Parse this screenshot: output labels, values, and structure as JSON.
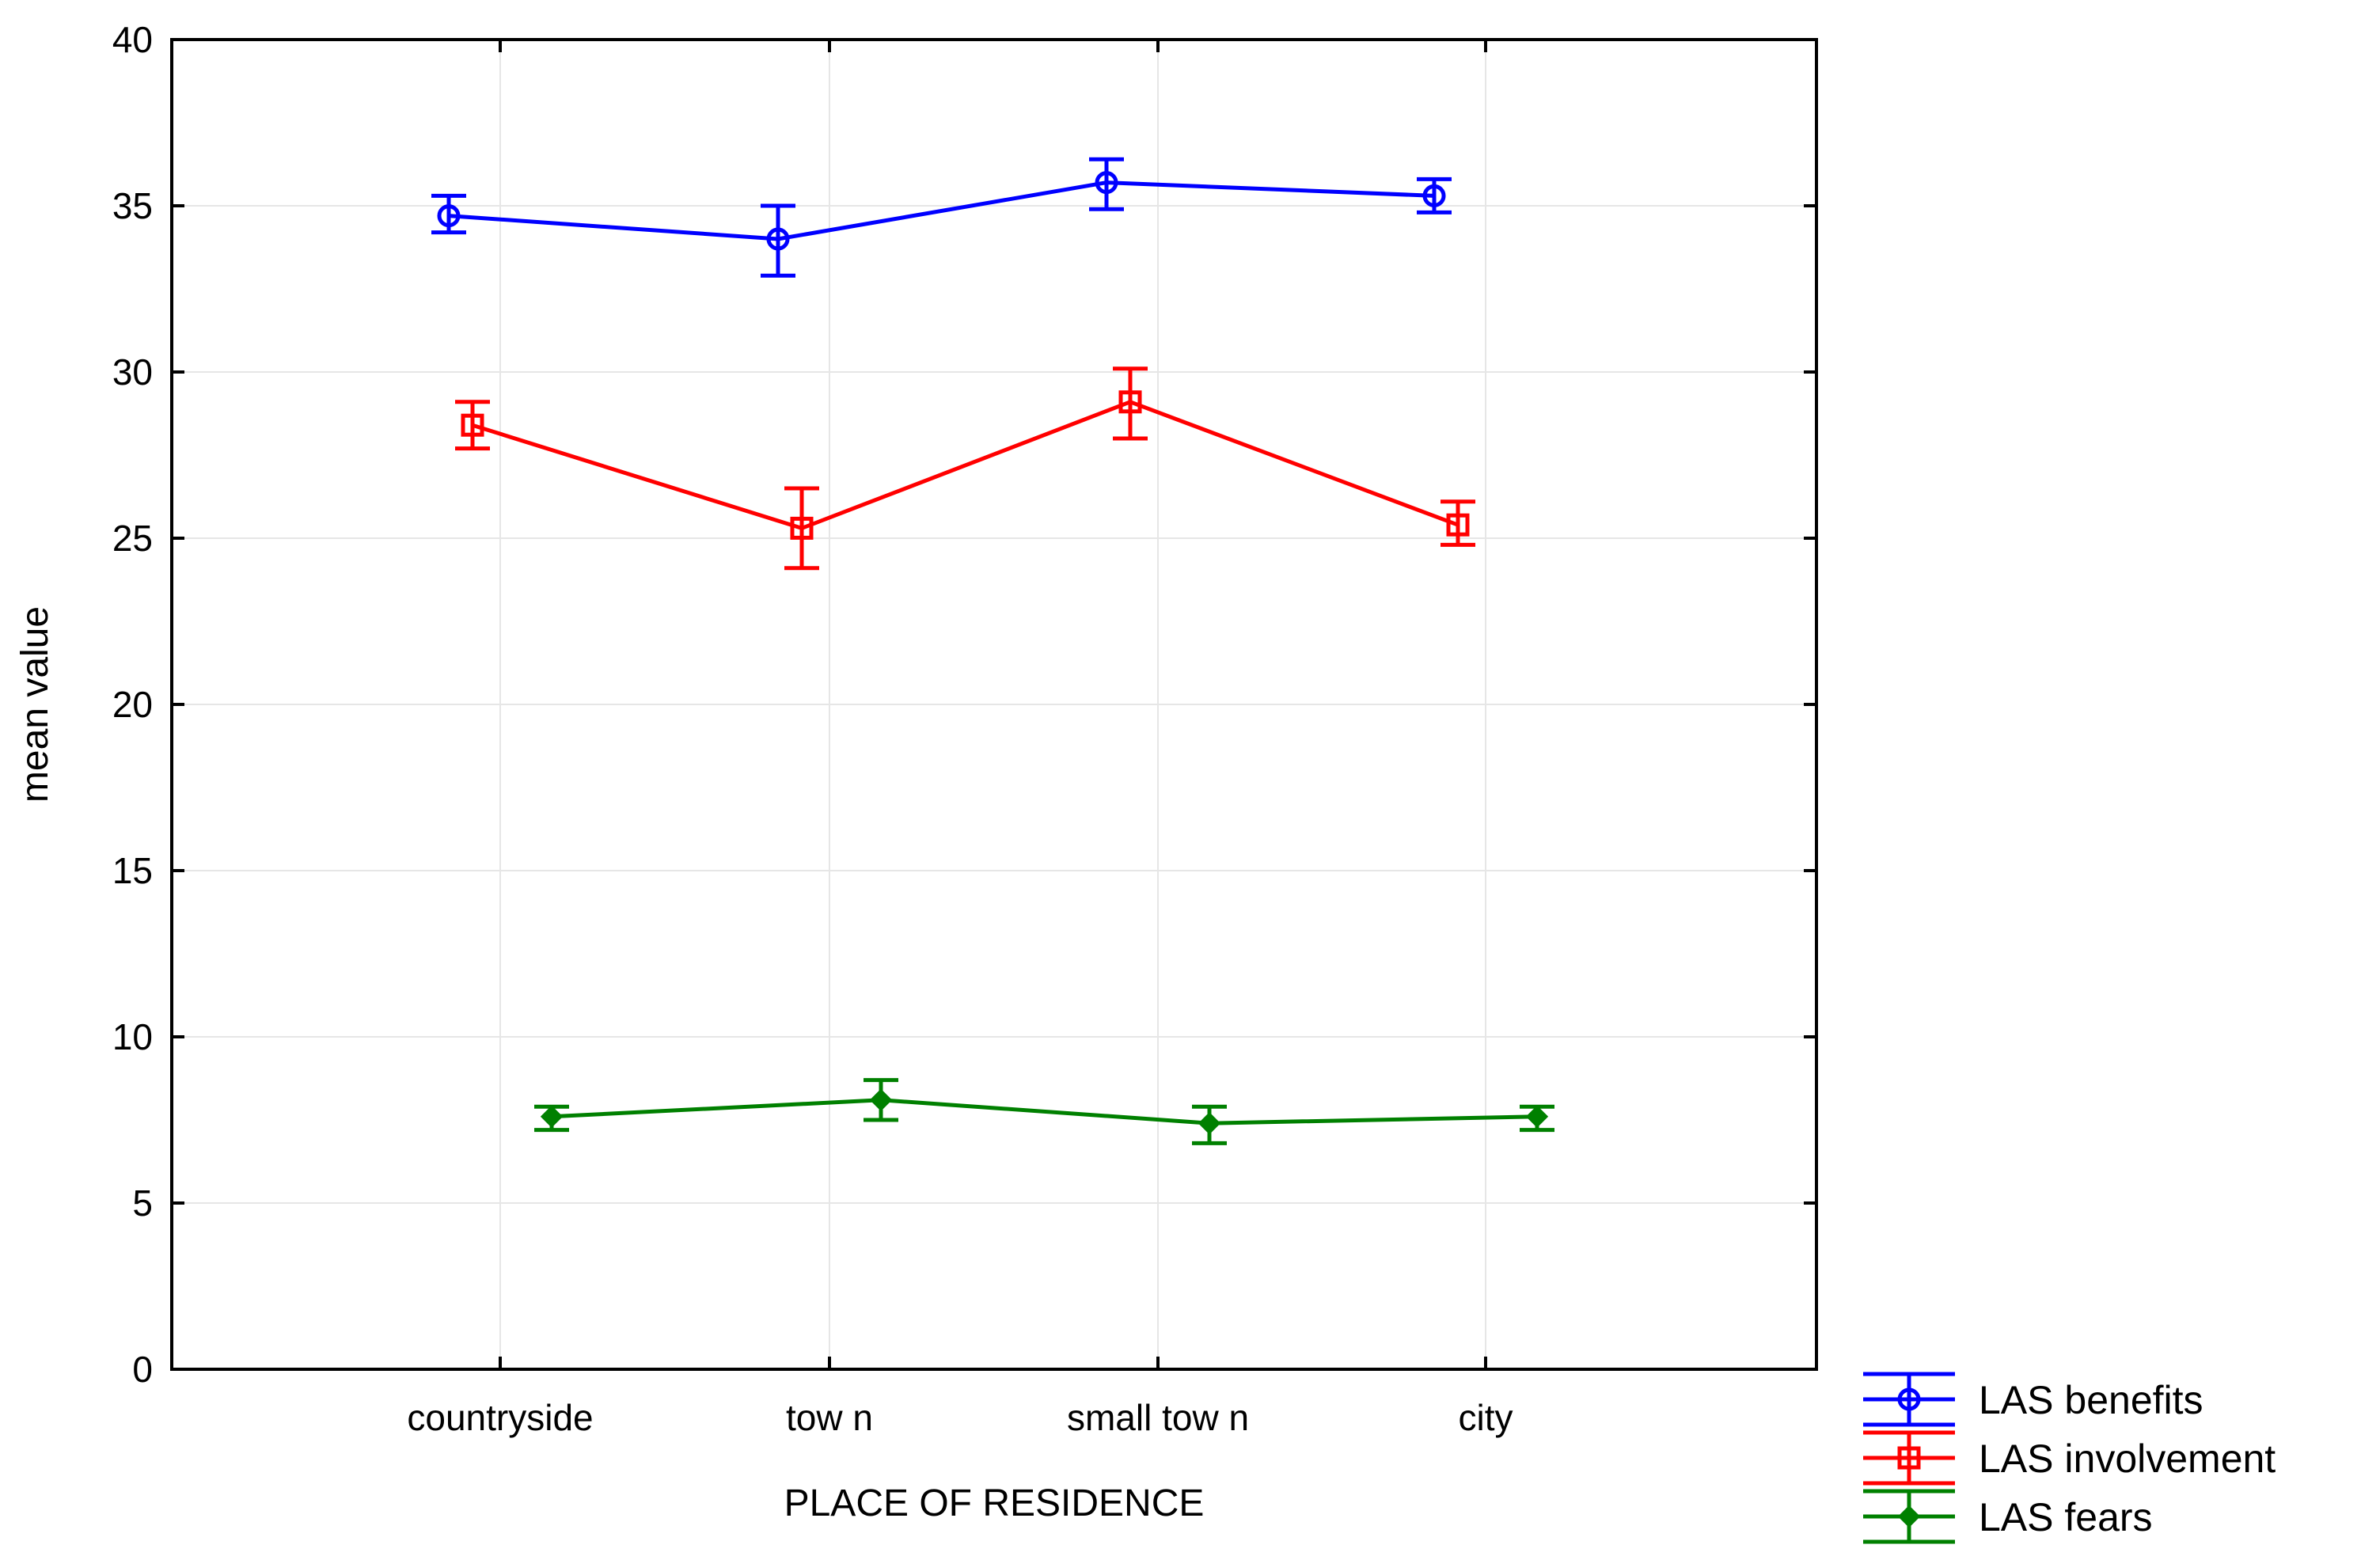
{
  "chart_data": {
    "type": "line",
    "title": "",
    "xlabel": "PLACE OF RESIDENCE",
    "ylabel": "mean value",
    "categories": [
      "countryside",
      "tow n",
      "small tow n",
      "city"
    ],
    "ylim": [
      0,
      40
    ],
    "yticks": [
      0,
      5,
      10,
      15,
      20,
      25,
      30,
      35,
      40
    ],
    "grid": true,
    "legend_position": "bottom-right",
    "series": [
      {
        "name": "LAS benefits",
        "color": "#0000ff",
        "marker": "circle",
        "values": [
          34.7,
          34.0,
          35.7,
          35.3
        ],
        "lower": [
          34.2,
          32.9,
          34.9,
          34.8
        ],
        "upper": [
          35.3,
          35.0,
          36.4,
          35.8
        ]
      },
      {
        "name": "LAS involvement",
        "color": "#ff0000",
        "marker": "square",
        "values": [
          28.4,
          25.3,
          29.1,
          25.4
        ],
        "lower": [
          27.7,
          24.1,
          28.0,
          24.8
        ],
        "upper": [
          29.1,
          26.5,
          30.1,
          26.1
        ]
      },
      {
        "name": "LAS fears",
        "color": "#008000",
        "marker": "diamond",
        "values": [
          7.6,
          8.1,
          7.4,
          7.6
        ],
        "lower": [
          7.2,
          7.5,
          6.8,
          7.2
        ],
        "upper": [
          7.9,
          8.7,
          7.9,
          7.9
        ]
      }
    ]
  }
}
